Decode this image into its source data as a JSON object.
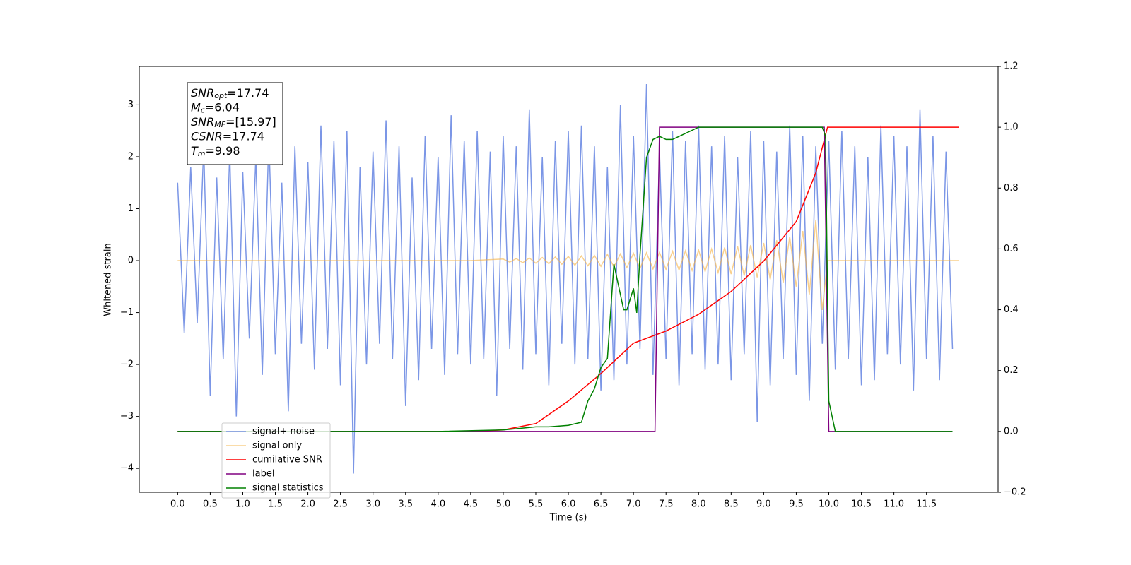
{
  "chart_data": {
    "type": "line",
    "xlabel": "Time (s)",
    "ylabel": "Whitened strain",
    "xlim": [
      -0.59,
      12.6
    ],
    "ylim": [
      -4.46,
      3.74
    ],
    "y2lim": [
      -0.2,
      1.2
    ],
    "xticks": [
      {
        "value": 0,
        "label": "0.0"
      },
      0.5,
      {
        "value": 1,
        "label": "1.0"
      },
      1.5,
      {
        "value": 2,
        "label": "2.0"
      },
      2.5,
      {
        "value": 3,
        "label": "3.0"
      },
      3.5,
      {
        "value": 4,
        "label": "4.0"
      },
      4.5,
      {
        "value": 5,
        "label": "5.0"
      },
      5.5,
      {
        "value": 6,
        "label": "6.0"
      },
      6.5,
      {
        "value": 7,
        "label": "7.0"
      },
      7.5,
      {
        "value": 8,
        "label": "8.0"
      },
      8.5,
      {
        "value": 9,
        "label": "9.0"
      },
      9.5,
      {
        "value": 10,
        "label": "10.0"
      },
      10.5,
      {
        "value": 11,
        "label": "11.0"
      },
      11.5
    ],
    "yticks": [
      {
        "value": -4,
        "label": "−4"
      },
      {
        "value": -3,
        "label": "−3"
      },
      {
        "value": -2,
        "label": "−2"
      },
      {
        "value": -1,
        "label": "−1"
      },
      0,
      1,
      2,
      3
    ],
    "y2ticks": [
      {
        "value": -0.2,
        "label": "−0.2"
      },
      {
        "value": 0,
        "label": "0.0"
      },
      0.2,
      0.4,
      0.6,
      0.8,
      {
        "value": 1,
        "label": "1.0"
      },
      1.2
    ],
    "legend": "lower left",
    "series": [
      {
        "name": "signal+ noise",
        "color": "#7b96e6",
        "x": [
          0,
          0.1,
          0.2,
          0.3,
          0.4,
          0.5,
          0.6,
          0.7,
          0.8,
          0.9,
          1,
          1.1,
          1.2,
          1.3,
          1.4,
          1.5,
          1.6,
          1.7,
          1.8,
          1.9,
          2,
          2.1,
          2.2,
          2.3,
          2.4,
          2.5,
          2.6,
          2.7,
          2.8,
          2.9,
          3,
          3.1,
          3.2,
          3.3,
          3.4,
          3.5,
          3.6,
          3.7,
          3.8,
          3.9,
          4,
          4.1,
          4.2,
          4.3,
          4.4,
          4.5,
          4.6,
          4.7,
          4.8,
          4.9,
          5,
          5.1,
          5.2,
          5.3,
          5.4,
          5.5,
          5.6,
          5.7,
          5.8,
          5.9,
          6,
          6.1,
          6.2,
          6.3,
          6.4,
          6.5,
          6.6,
          6.7,
          6.8,
          6.9,
          7,
          7.1,
          7.2,
          7.3,
          7.4,
          7.5,
          7.6,
          7.7,
          7.8,
          7.9,
          8,
          8.1,
          8.2,
          8.3,
          8.4,
          8.5,
          8.6,
          8.7,
          8.8,
          8.9,
          9,
          9.1,
          9.2,
          9.3,
          9.4,
          9.5,
          9.6,
          9.7,
          9.8,
          9.9,
          10,
          10.1,
          10.2,
          10.3,
          10.4,
          10.5,
          10.6,
          10.7,
          10.8,
          10.9,
          11,
          11.1,
          11.2,
          11.3,
          11.4,
          11.5,
          11.6,
          11.7,
          11.8,
          11.9
        ],
        "values": [
          1.5,
          -1.4,
          1.8,
          -1.2,
          2.2,
          -2.6,
          1.6,
          -1.9,
          2.1,
          -3.0,
          1.7,
          -1.5,
          2.0,
          -2.2,
          2.4,
          -1.8,
          1.5,
          -2.9,
          2.2,
          -1.6,
          1.9,
          -2.1,
          2.6,
          -1.7,
          2.3,
          -2.4,
          2.5,
          -4.1,
          1.8,
          -2.0,
          2.1,
          -1.6,
          2.7,
          -1.9,
          2.2,
          -2.8,
          1.6,
          -2.3,
          2.4,
          -1.7,
          2.0,
          -2.2,
          2.8,
          -1.8,
          2.3,
          -2.0,
          2.5,
          -1.9,
          2.1,
          -2.6,
          2.4,
          -1.7,
          2.2,
          -2.1,
          2.9,
          -1.8,
          2.0,
          -2.4,
          2.3,
          -1.6,
          2.5,
          -2.0,
          2.6,
          -1.9,
          2.2,
          -2.5,
          1.8,
          -2.3,
          3.0,
          -2.0,
          2.4,
          -1.7,
          3.4,
          -2.2,
          2.1,
          -1.9,
          2.5,
          -2.4,
          2.3,
          -1.8,
          2.6,
          -2.1,
          2.2,
          -2.0,
          2.4,
          -2.3,
          2.0,
          -1.8,
          2.5,
          -3.1,
          2.3,
          -2.4,
          2.1,
          -1.9,
          2.6,
          -2.2,
          2.4,
          -2.7,
          2.2,
          -1.6,
          2.3,
          -2.1,
          2.5,
          -1.9,
          2.2,
          -2.4,
          2.0,
          -2.3,
          2.6,
          -1.8,
          2.4,
          -2.0,
          2.2,
          -2.5,
          2.9,
          -1.9,
          2.4,
          -2.3,
          2.1,
          -1.7
        ]
      },
      {
        "name": "signal only",
        "color": "#f5b041",
        "x": [
          0,
          4.5,
          5,
          5.1,
          5.2,
          5.3,
          5.4,
          5.5,
          5.6,
          5.7,
          5.8,
          5.9,
          6,
          6.1,
          6.2,
          6.3,
          6.4,
          6.5,
          6.6,
          6.7,
          6.8,
          6.9,
          7,
          7.1,
          7.2,
          7.3,
          7.4,
          7.5,
          7.6,
          7.7,
          7.8,
          7.9,
          8,
          8.1,
          8.2,
          8.3,
          8.4,
          8.5,
          8.6,
          8.7,
          8.8,
          8.9,
          9,
          9.1,
          9.2,
          9.3,
          9.4,
          9.5,
          9.6,
          9.7,
          9.8,
          9.9,
          9.98,
          12
        ],
        "values": [
          0,
          0,
          0.03,
          -0.03,
          0.04,
          -0.04,
          0.05,
          -0.05,
          0.06,
          -0.06,
          0.07,
          -0.07,
          0.08,
          -0.09,
          0.09,
          -0.1,
          0.1,
          -0.11,
          0.12,
          -0.12,
          0.13,
          -0.13,
          0.14,
          -0.15,
          0.15,
          -0.16,
          0.16,
          -0.17,
          0.18,
          -0.18,
          0.19,
          -0.19,
          0.2,
          -0.21,
          0.22,
          -0.23,
          0.25,
          -0.26,
          0.27,
          -0.29,
          0.3,
          -0.32,
          0.34,
          -0.36,
          0.39,
          -0.42,
          0.46,
          -0.5,
          0.57,
          -0.65,
          0.78,
          -0.95,
          0,
          0
        ]
      },
      {
        "name": "cumilative SNR",
        "color": "#ff0000",
        "axis": "y2",
        "x": [
          0,
          4.5,
          5,
          5.5,
          6,
          6.5,
          7,
          7.5,
          8,
          8.5,
          9,
          9.5,
          9.8,
          9.98,
          12
        ],
        "values": [
          0,
          0,
          0.005,
          0.026,
          0.1,
          0.19,
          0.29,
          0.33,
          0.385,
          0.46,
          0.56,
          0.69,
          0.85,
          1,
          1
        ]
      },
      {
        "name": "label",
        "color": "#800080",
        "axis": "y2",
        "x": [
          0,
          7.33,
          7.4,
          9.93,
          10,
          11.9
        ],
        "values": [
          0,
          0,
          1,
          1,
          0,
          0
        ]
      },
      {
        "name": "signal statistics",
        "color": "#008000",
        "axis": "y2",
        "x": [
          0,
          4,
          5,
          5.5,
          5.7,
          6,
          6.2,
          6.3,
          6.4,
          6.5,
          6.6,
          6.7,
          6.75,
          6.85,
          6.9,
          7,
          7.05,
          7.1,
          7.2,
          7.3,
          7.4,
          7.5,
          7.6,
          7.8,
          8,
          8.5,
          9,
          9.9,
          9.95,
          10,
          10.1,
          11.9
        ],
        "values": [
          0,
          0,
          0.005,
          0.015,
          0.015,
          0.02,
          0.03,
          0.1,
          0.14,
          0.21,
          0.24,
          0.55,
          0.5,
          0.4,
          0.4,
          0.47,
          0.39,
          0.58,
          0.9,
          0.96,
          0.97,
          0.96,
          0.96,
          0.98,
          1,
          1,
          1,
          1,
          0.97,
          0.1,
          0,
          0
        ]
      }
    ],
    "annotation": [
      {
        "base": "SNR",
        "sub": "opt",
        "rest": "=17.74"
      },
      {
        "base": "M",
        "sub": "c",
        "rest": "=6.04"
      },
      {
        "base": "SNR",
        "sub": "MF",
        "rest": "=[15.97]"
      },
      {
        "base": "CSNR",
        "rest": "=17.74"
      },
      {
        "base": "T",
        "sub": "m",
        "rest": "=9.98"
      }
    ]
  }
}
